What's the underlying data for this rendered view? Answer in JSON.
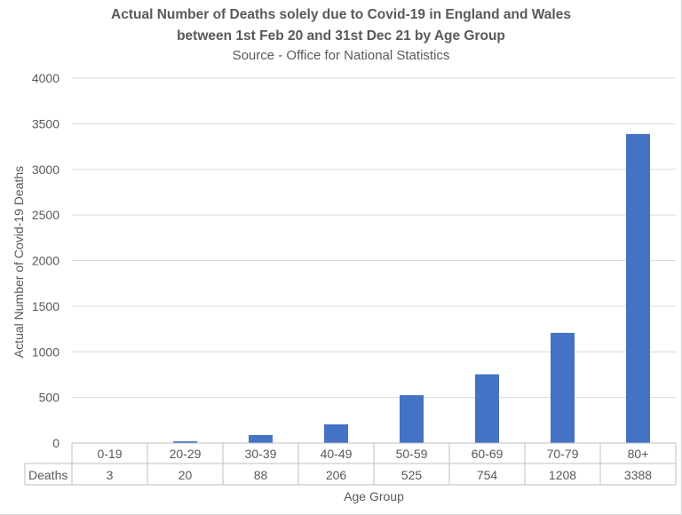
{
  "chart_data": {
    "type": "bar",
    "title": "Actual Number of Deaths solely due to Covid-19 in England and Wales",
    "title_line2": "between 1st Feb 20 and 31st Dec 21 by Age Group",
    "subtitle": "Source - Office for National Statistics",
    "xlabel": "Age Group",
    "ylabel": "Actual Number of Covid-19 Deaths",
    "categories": [
      "0-19",
      "20-29",
      "30-39",
      "40-49",
      "50-59",
      "60-69",
      "70-79",
      "80+"
    ],
    "series": [
      {
        "name": "Deaths",
        "values": [
          3,
          20,
          88,
          206,
          525,
          754,
          1208,
          3388
        ]
      }
    ],
    "ylim": [
      0,
      4000
    ],
    "yticks": [
      0,
      500,
      1000,
      1500,
      2000,
      2500,
      3000,
      3500,
      4000
    ],
    "grid": true,
    "data_table": true,
    "bar_color": "#4472c4",
    "grid_color": "#d9d9d9"
  }
}
